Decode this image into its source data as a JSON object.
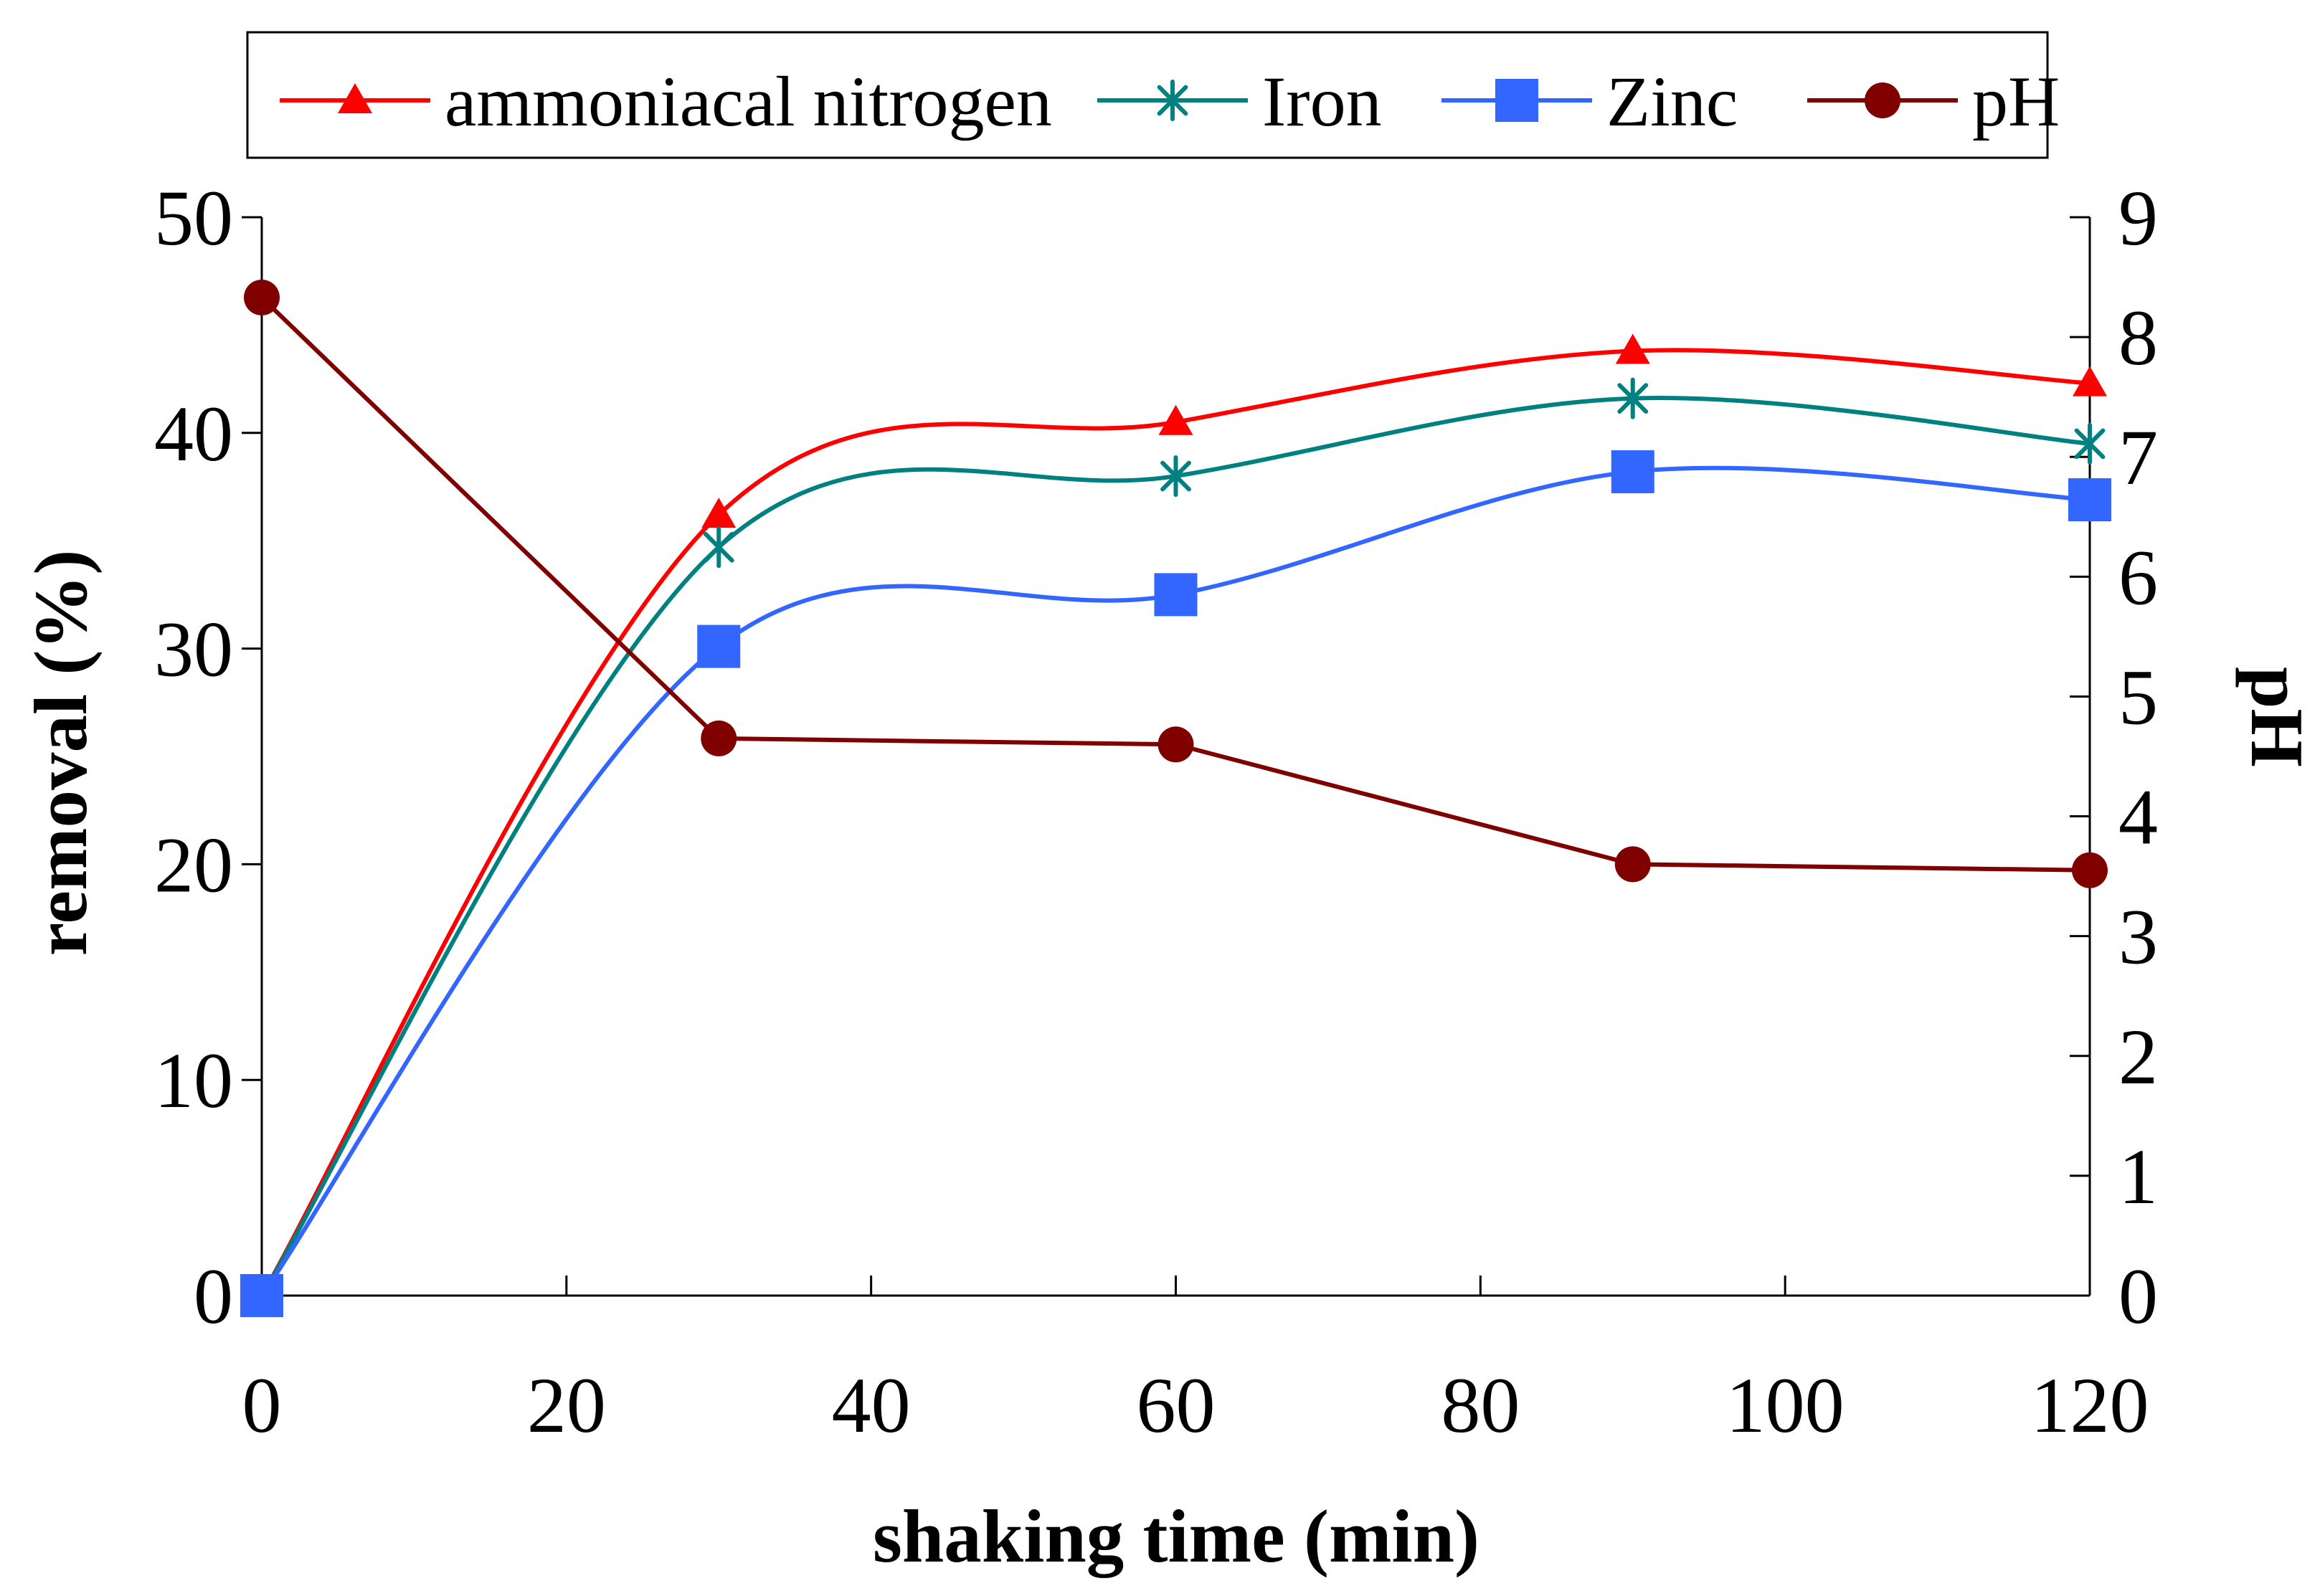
{
  "chart_data": {
    "type": "line",
    "xlabel": "shaking time (min)",
    "ylabel": "removal (%)",
    "y2label": "pH",
    "xlim": [
      0,
      120
    ],
    "ylim": [
      0,
      50
    ],
    "y2lim": [
      0,
      9
    ],
    "x_ticks": [
      0,
      20,
      40,
      60,
      80,
      100,
      120
    ],
    "y_ticks": [
      0,
      10,
      20,
      30,
      40,
      50
    ],
    "y2_ticks": [
      0,
      1,
      2,
      3,
      4,
      5,
      6,
      7,
      8,
      9
    ],
    "grid": false,
    "legend_position": "top",
    "series": [
      {
        "name": "ammoniacal nitrogen",
        "axis": "left",
        "color": "#ff0000",
        "marker": "triangle",
        "smooth": true,
        "x": [
          0,
          30,
          60,
          90,
          120
        ],
        "y": [
          0,
          36.2,
          40.5,
          43.8,
          42.3
        ]
      },
      {
        "name": "Iron",
        "axis": "left",
        "color": "#008080",
        "marker": "asterisk",
        "smooth": true,
        "x": [
          0,
          30,
          60,
          90,
          120
        ],
        "y": [
          0,
          34.7,
          38.0,
          41.6,
          39.5
        ]
      },
      {
        "name": "Zinc",
        "axis": "left",
        "color": "#3366ff",
        "marker": "square",
        "smooth": true,
        "x": [
          0,
          30,
          60,
          90,
          120
        ],
        "y": [
          0,
          30.1,
          32.5,
          38.2,
          36.9
        ]
      },
      {
        "name": "pH",
        "axis": "right",
        "color": "#800000",
        "marker": "circle",
        "smooth": false,
        "x": [
          0,
          30,
          60,
          90,
          120
        ],
        "y": [
          8.33,
          4.65,
          4.6,
          3.6,
          3.55
        ]
      }
    ]
  }
}
